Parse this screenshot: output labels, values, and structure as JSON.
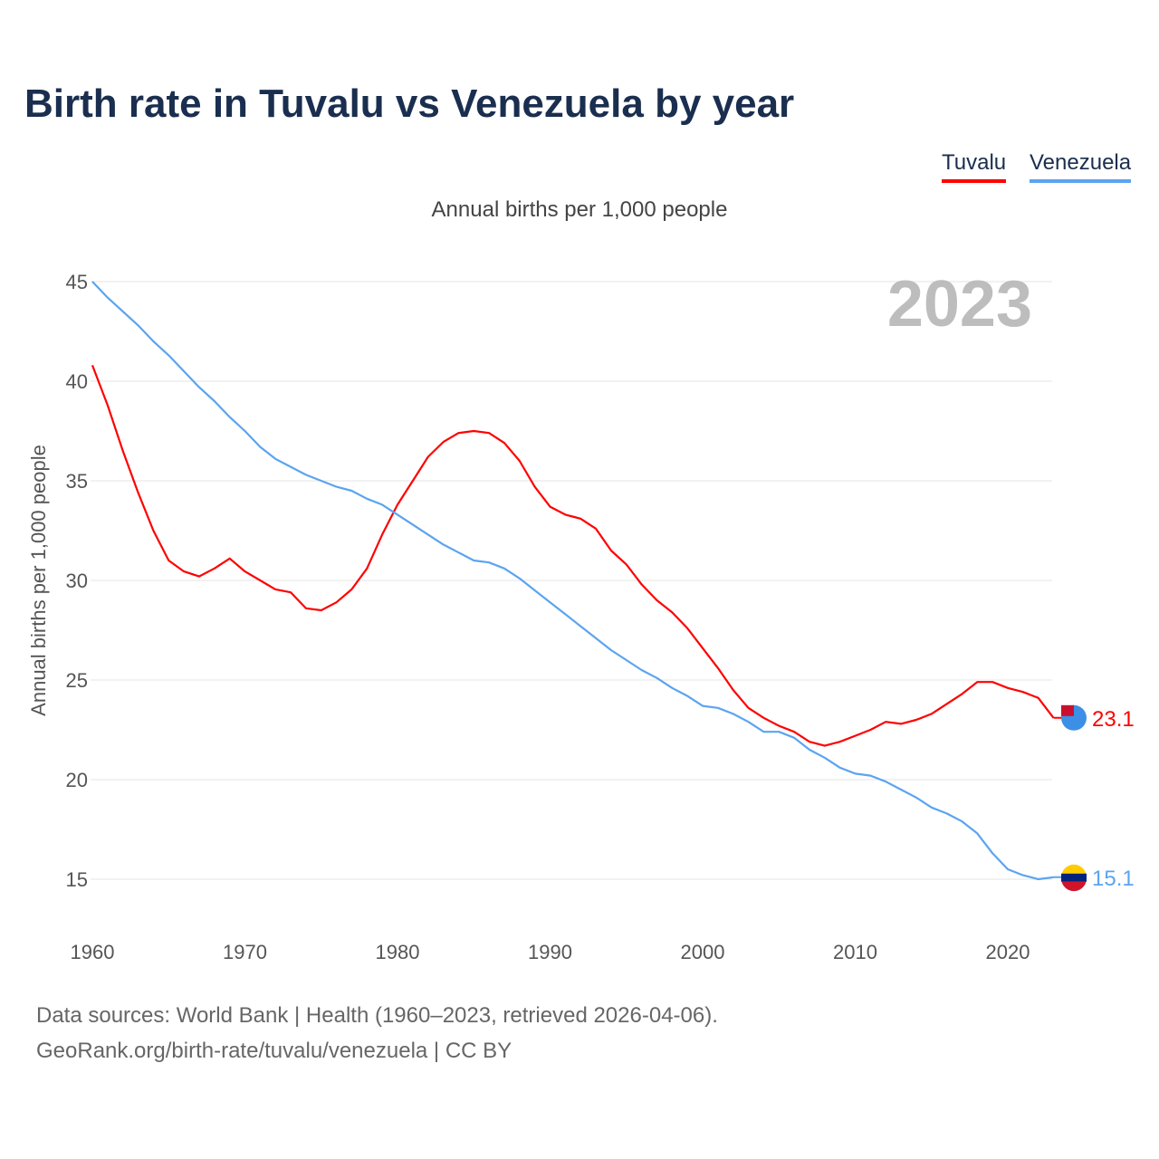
{
  "title": "Birth rate in Tuvalu vs Venezuela by year",
  "legend": [
    {
      "label": "Tuvalu",
      "color": "#ff0000"
    },
    {
      "label": "Venezuela",
      "color": "#5ba4f0"
    }
  ],
  "footer": {
    "line1": "Data sources: World Bank | Health (1960–2023, retrieved 2026-04-06).",
    "line2": "GeoRank.org/birth-rate/tuvalu/venezuela | CC BY"
  },
  "chart_data": {
    "type": "line",
    "title": "Birth rate in Tuvalu vs Venezuela by year",
    "subtitle": "Annual births per 1,000 people",
    "ylabel": "Annual births per 1,000 people",
    "xlabel": "",
    "year_badge": "2023",
    "xlim": [
      1960,
      2023
    ],
    "ylim": [
      13,
      46
    ],
    "xticks": [
      1960,
      1970,
      1980,
      1990,
      2000,
      2010,
      2020
    ],
    "yticks": [
      15,
      20,
      25,
      30,
      35,
      40,
      45
    ],
    "grid": true,
    "legend_position": "top-right",
    "x": [
      1960,
      1961,
      1962,
      1963,
      1964,
      1965,
      1966,
      1967,
      1968,
      1969,
      1970,
      1971,
      1972,
      1973,
      1974,
      1975,
      1976,
      1977,
      1978,
      1979,
      1980,
      1981,
      1982,
      1983,
      1984,
      1985,
      1986,
      1987,
      1988,
      1989,
      1990,
      1991,
      1992,
      1993,
      1994,
      1995,
      1996,
      1997,
      1998,
      1999,
      2000,
      2001,
      2002,
      2003,
      2004,
      2005,
      2006,
      2007,
      2008,
      2009,
      2010,
      2011,
      2012,
      2013,
      2014,
      2015,
      2016,
      2017,
      2018,
      2019,
      2020,
      2021,
      2022,
      2023
    ],
    "series": [
      {
        "name": "Tuvalu",
        "color": "#ff0000",
        "end_label": "23.1",
        "values": [
          40.8,
          38.8,
          36.5,
          34.4,
          32.5,
          31.0,
          30.45,
          30.2,
          30.6,
          31.1,
          30.45,
          30.0,
          29.55,
          29.4,
          28.6,
          28.5,
          28.9,
          29.55,
          30.6,
          32.3,
          33.8,
          35.0,
          36.2,
          36.95,
          37.4,
          37.5,
          37.4,
          36.9,
          36.0,
          34.7,
          33.7,
          33.3,
          33.1,
          32.6,
          31.5,
          30.8,
          29.8,
          29.0,
          28.4,
          27.6,
          26.6,
          25.6,
          24.5,
          23.6,
          23.1,
          22.7,
          22.4,
          21.9,
          21.7,
          21.9,
          22.2,
          22.5,
          22.9,
          22.8,
          23.0,
          23.3,
          23.8,
          24.3,
          24.9,
          24.9,
          24.6,
          24.4,
          24.1,
          23.1
        ]
      },
      {
        "name": "Venezuela",
        "color": "#5ba4f0",
        "end_label": "15.1",
        "values": [
          45.0,
          44.2,
          43.5,
          42.8,
          42.0,
          41.3,
          40.5,
          39.7,
          39.0,
          38.2,
          37.5,
          36.7,
          36.1,
          35.7,
          35.3,
          35.0,
          34.7,
          34.5,
          34.1,
          33.8,
          33.3,
          32.8,
          32.3,
          31.8,
          31.4,
          31.0,
          30.9,
          30.6,
          30.1,
          29.5,
          28.9,
          28.3,
          27.7,
          27.1,
          26.5,
          26.0,
          25.5,
          25.1,
          24.6,
          24.2,
          23.7,
          23.6,
          23.3,
          22.9,
          22.4,
          22.4,
          22.1,
          21.5,
          21.1,
          20.6,
          20.3,
          20.2,
          19.9,
          19.5,
          19.1,
          18.6,
          18.3,
          17.9,
          17.3,
          16.3,
          15.5,
          15.2,
          15.0,
          15.1
        ]
      }
    ]
  }
}
